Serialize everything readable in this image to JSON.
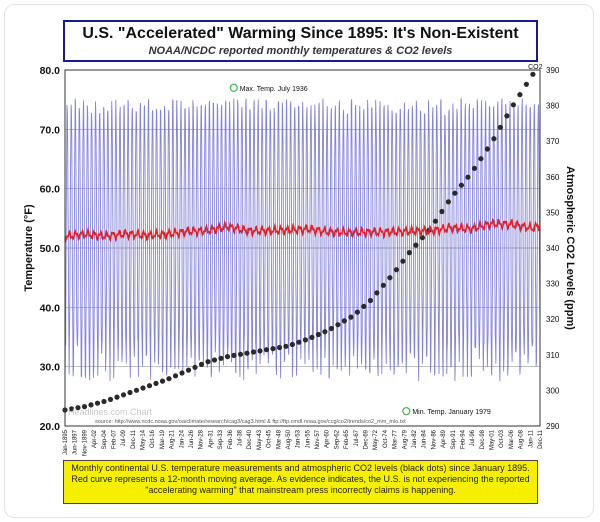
{
  "chart_data": {
    "type": "line",
    "title": "U.S. \"Accelerated\" Warming Since 1895: It's Non-Existent",
    "subtitle": "NOAA/NCDC reported monthly temperatures & CO2 levels",
    "ylabel": "Temperature (°F)",
    "y2label": "Atmospheric CO2 Levels (ppm)",
    "ylim": [
      20,
      80
    ],
    "y_ticks": [
      "20.0",
      "30.0",
      "40.0",
      "50.0",
      "60.0",
      "70.0",
      "80.0"
    ],
    "y2lim": [
      290,
      390
    ],
    "y2_ticks": [
      "290",
      "300",
      "310",
      "320",
      "330",
      "340",
      "350",
      "360",
      "370",
      "380",
      "390"
    ],
    "x_ticks": [
      "Jan-1895",
      "Jun-1897",
      "Nov-1899",
      "Apr-02",
      "Sep-04",
      "Feb-07",
      "Jul-09",
      "Dec-11",
      "May-14",
      "Oct-16",
      "Mar-19",
      "Aug-21",
      "Jan-24",
      "Jun-26",
      "Nov-28",
      "Apr-31",
      "Sep-33",
      "Feb-36",
      "Jul-38",
      "Dec-40",
      "May-43",
      "Oct-45",
      "Mar-48",
      "Aug-50",
      "Jan-53",
      "Jun-55",
      "Nov-57",
      "Apr-60",
      "Sep-62",
      "Feb-65",
      "Jul-67",
      "Dec-69",
      "May-72",
      "Oct-74",
      "Mar-77",
      "Aug-79",
      "Jan-82",
      "Jun-84",
      "Nov-86",
      "Apr-89",
      "Sep-91",
      "Feb-94",
      "Jul-96",
      "Dec-98",
      "May-01",
      "Oct-03",
      "Mar-06",
      "Aug-08",
      "Jan-11",
      "Dec-11"
    ],
    "grid": true,
    "series": [
      {
        "kind": "monthly_temperature",
        "color": "#6f6fd0",
        "summer_peak_approx": 74.5,
        "winter_low_approx": 30.0,
        "x_start": 1895.0,
        "x_end": 2011.95
      },
      {
        "kind": "moving_average_12mo",
        "color": "#e0202a",
        "x": [
          1895,
          1900,
          1905,
          1910,
          1915,
          1920,
          1925,
          1930,
          1935,
          1940,
          1945,
          1950,
          1955,
          1960,
          1965,
          1970,
          1975,
          1980,
          1985,
          1990,
          1995,
          2000,
          2005,
          2010,
          2011
        ],
        "values": [
          52.0,
          52.3,
          52.0,
          52.4,
          52.1,
          52.3,
          52.8,
          52.9,
          53.6,
          52.9,
          52.9,
          53.0,
          53.2,
          52.7,
          52.6,
          52.7,
          52.7,
          52.8,
          52.9,
          53.4,
          53.2,
          54.1,
          54.0,
          53.3,
          53.6
        ]
      },
      {
        "kind": "co2_ppm",
        "color": "#2a2a2a",
        "x": [
          1895,
          1900,
          1905,
          1910,
          1915,
          1920,
          1925,
          1930,
          1935,
          1940,
          1945,
          1950,
          1955,
          1960,
          1963,
          1966,
          1970,
          1973,
          1976,
          1980,
          1985,
          1990,
          1995,
          2000,
          2005,
          2010,
          2011
        ],
        "values": [
          294.5,
          295.5,
          297.0,
          299.0,
          301.0,
          303.0,
          305.5,
          308.0,
          309.5,
          310.5,
          311.5,
          312.5,
          314.5,
          317.0,
          319.0,
          321.0,
          325.0,
          329.0,
          333.0,
          339.0,
          345.5,
          354.0,
          361.0,
          369.5,
          379.5,
          388.5,
          390.0
        ]
      }
    ],
    "annotations": [
      {
        "text": "Max. Temp. July 1936",
        "x": 1936.54,
        "y": 77.0
      },
      {
        "text": "Min. Temp. January 1979",
        "x": 1979.04,
        "y": 22.5
      },
      {
        "text": "CO2",
        "x": 2010.5,
        "y": 390
      }
    ],
    "source_text": "source: http://www.ncdc.noaa.gov/oa/climate/research/cag3/cag3.html & ftp://ftp.cmdl.noaa.gov/ccg/co2/trends/co2_mm_mlo.txt",
    "watermark": "Headlines.com Chart",
    "caption": "Monthly continental U.S. temperature measurements and atmospheric CO2 levels (black dots) since January 1895. Red curve represents a 12-month moving average. As evidence indicates, the U.S. is not experiencing the reported \"accelerating warming\" that mainstream press incorrectly claims is happening."
  }
}
